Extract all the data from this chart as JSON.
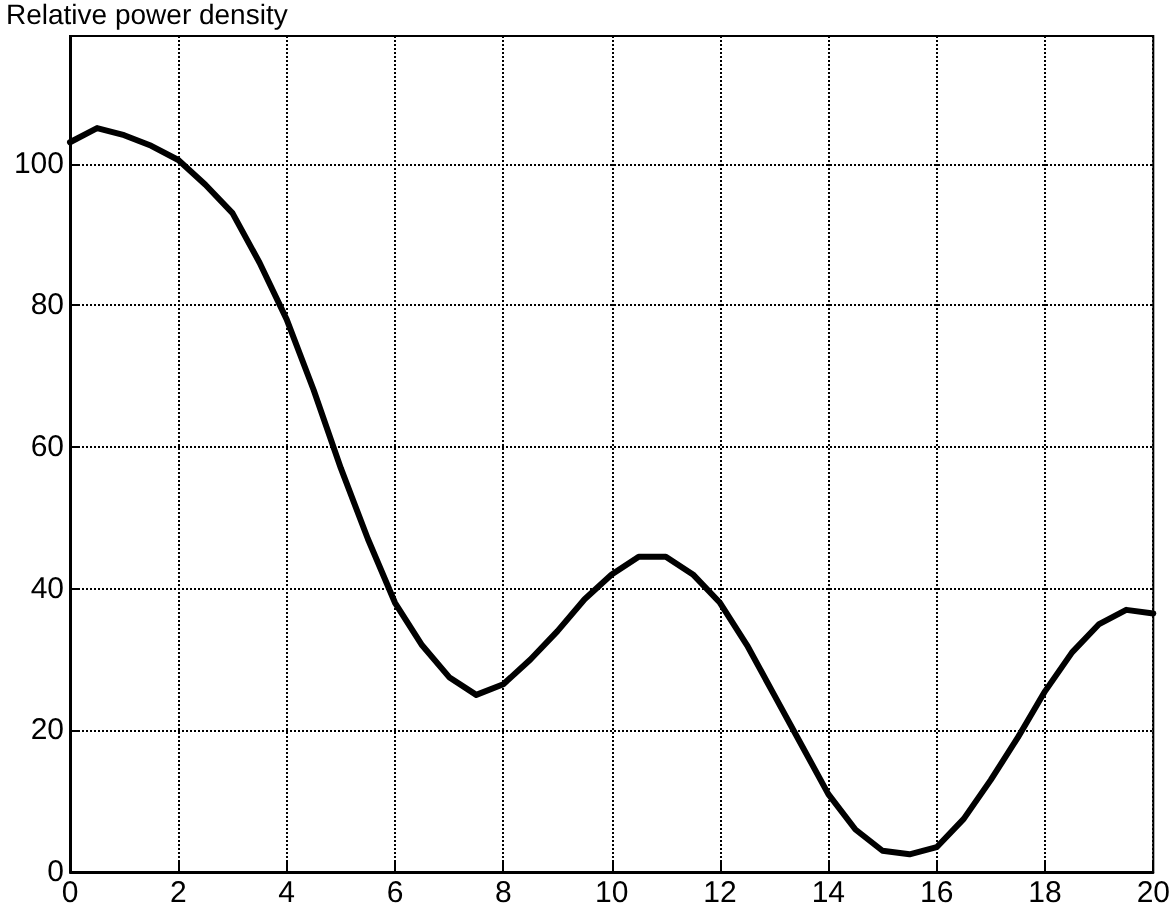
{
  "chart_data": {
    "type": "line",
    "ylabel": "Relative power density",
    "x": [
      0,
      0.5,
      1,
      1.5,
      2,
      2.5,
      3,
      3.5,
      4,
      4.5,
      5,
      5.5,
      6,
      6.5,
      7,
      7.5,
      8,
      8.5,
      9,
      9.5,
      10,
      10.5,
      11,
      11.5,
      12,
      12.5,
      13,
      13.5,
      14,
      14.5,
      15,
      15.5,
      16,
      16.5,
      17,
      17.5,
      18,
      18.5,
      19,
      19.5,
      20
    ],
    "series": [
      {
        "color": "#000000",
        "values": [
          103,
          105,
          104,
          102.5,
          100.5,
          97,
          93,
          86,
          78,
          68,
          57,
          47,
          38,
          32,
          27.5,
          25,
          26.5,
          30,
          34,
          38.5,
          42,
          44.5,
          44.5,
          42,
          38,
          32,
          25,
          18,
          11,
          6,
          3,
          2.5,
          3.5,
          7.5,
          13,
          19,
          25.5,
          31,
          35,
          37,
          36.5
        ]
      }
    ],
    "xlim": [
      0,
      20
    ],
    "xticks": [
      0,
      2,
      4,
      6,
      8,
      10,
      12,
      14,
      16,
      18,
      20
    ],
    "ylim": [
      0,
      118
    ],
    "yticks": [
      0,
      20,
      40,
      60,
      80,
      100
    ],
    "grid": true,
    "marker": "none",
    "line_style": "solid"
  }
}
